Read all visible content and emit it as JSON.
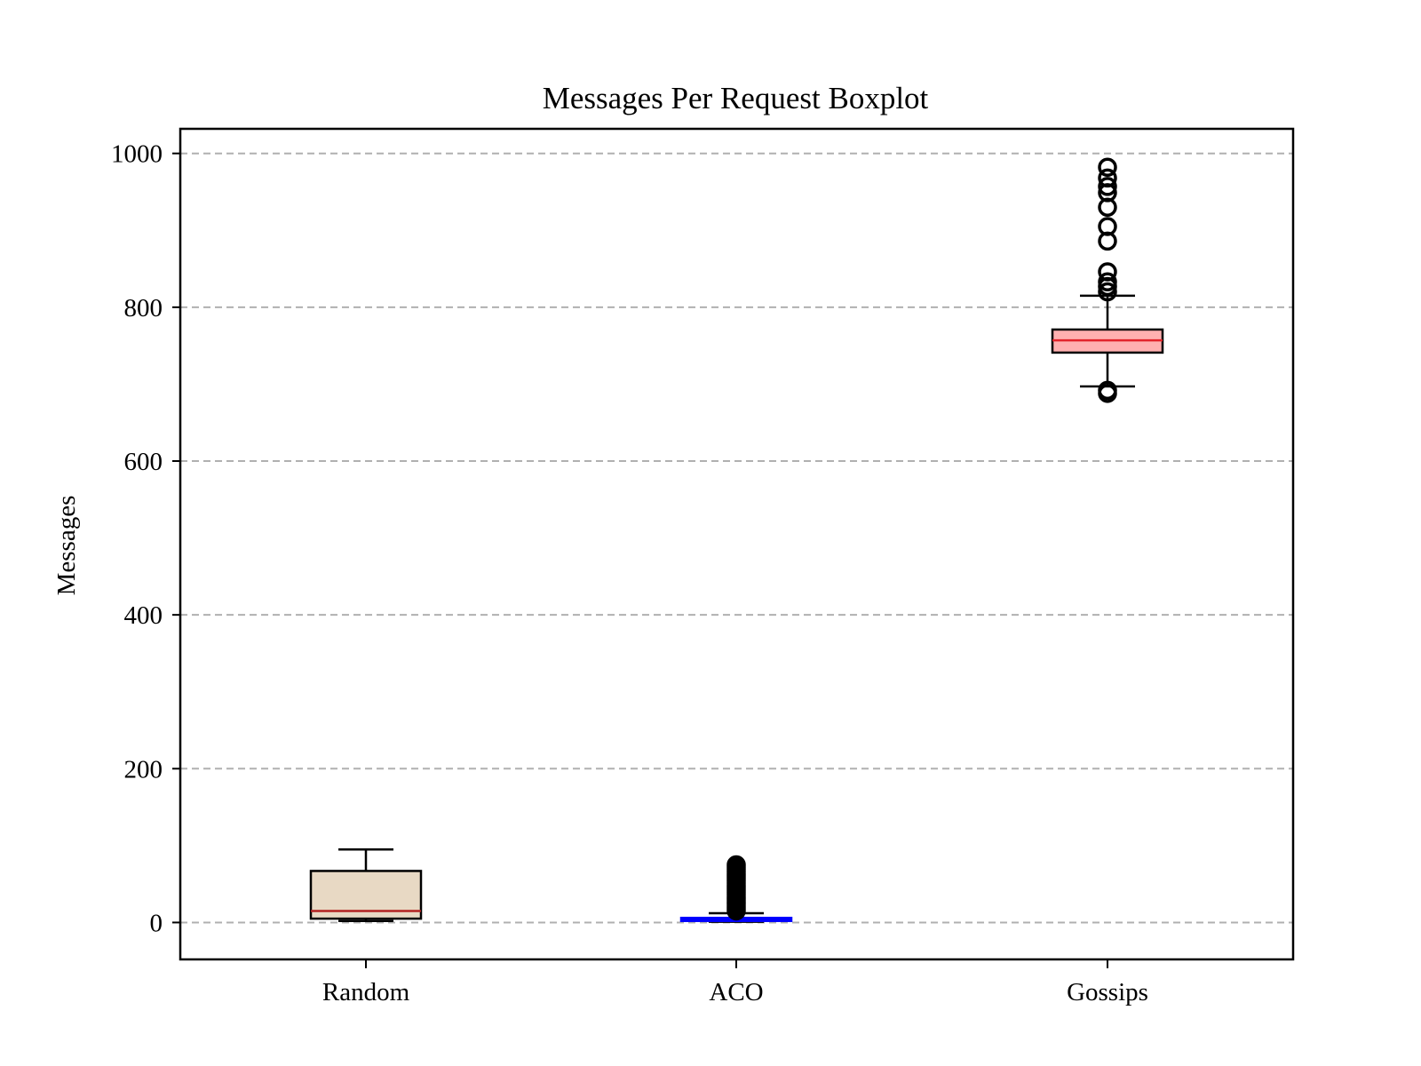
{
  "chart_data": {
    "type": "box",
    "title": "Messages Per Request Boxplot",
    "xlabel": "",
    "ylabel": "Messages",
    "ylim": [
      -48,
      1032
    ],
    "yticks": [
      0,
      200,
      400,
      600,
      800,
      1000
    ],
    "grid": {
      "axis": "y",
      "style": "dashed",
      "color": "#b0b0b0"
    },
    "categories": [
      "Random",
      "ACO",
      "Gossips"
    ],
    "boxes": [
      {
        "name": "Random",
        "whisker_low": 2,
        "q1": 5,
        "median": 15,
        "q3": 67,
        "whisker_high": 95,
        "outliers": [],
        "fill": "#e8d9c4",
        "median_color": "#b22222"
      },
      {
        "name": "ACO",
        "whisker_low": 1,
        "q1": 2,
        "median": 3,
        "q3": 6,
        "whisker_high": 12,
        "outliers": [
          15,
          18,
          21,
          24,
          27,
          30,
          33,
          36,
          39,
          42,
          45,
          48,
          51,
          54,
          57,
          60,
          63,
          66,
          69,
          72,
          75
        ],
        "fill": "#0000ff",
        "median_color": "#0000ff"
      },
      {
        "name": "Gossips",
        "whisker_low": 697,
        "q1": 741,
        "median": 757,
        "q3": 771,
        "whisker_high": 815,
        "outliers": [
          688,
          692,
          820,
          827,
          833,
          846,
          886,
          905,
          930,
          949,
          957,
          968,
          982
        ],
        "fill": "#ffb0b0",
        "median_color": "#e3242b"
      }
    ]
  }
}
